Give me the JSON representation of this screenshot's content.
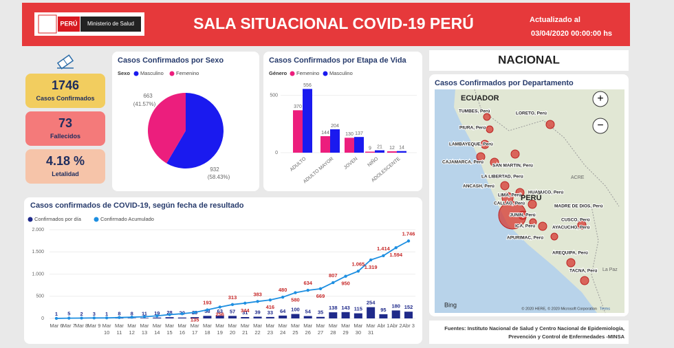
{
  "header": {
    "logo_country": "PERÚ",
    "logo_ministry": "Ministerio de Salud",
    "title": "SALA SITUACIONAL COVID-19 PERÚ",
    "updated_label": "Actualizado al",
    "updated_date": "03/04/2020 00:00:00 hs"
  },
  "kpis": [
    {
      "value": "1746",
      "label": "Casos Confirmados"
    },
    {
      "value": "73",
      "label": "Fallecidos"
    },
    {
      "value": "4.18 %",
      "label": "Letalidad"
    }
  ],
  "chart_data": [
    {
      "type": "pie",
      "title": "Casos Confirmados por Sexo",
      "legend_title": "Sexo",
      "categories": [
        "Masculino",
        "Femenino"
      ],
      "values": [
        932,
        663
      ],
      "percent_labels": [
        "(58.43%)",
        "(41.57%)"
      ],
      "colors": [
        "#1a1aef",
        "#ec1e7d"
      ]
    },
    {
      "type": "bar",
      "title": "Casos Confirmados por Etapa de Vida",
      "legend_title": "Género",
      "categories": [
        "ADULTO",
        "ADULTO MAYOR",
        "JOVEN",
        "NIÑO",
        "ADOLESCENTE"
      ],
      "series": [
        {
          "name": "Femenino",
          "color": "#ec1e7d",
          "values": [
            370,
            144,
            130,
            9,
            12
          ]
        },
        {
          "name": "Masculino",
          "color": "#1a1aef",
          "values": [
            556,
            204,
            137,
            21,
            14
          ]
        }
      ],
      "ylim": [
        0,
        600
      ],
      "yticks": [
        0,
        500
      ]
    },
    {
      "type": "combo",
      "title": "Casos confirmados de COVID-19, según fecha de resultado",
      "categories": [
        "Mar 6",
        "Mar 7",
        "Mar 8",
        "Mar 9",
        "Mar 10",
        "Mar 11",
        "Mar 12",
        "Mar 13",
        "Mar 14",
        "Mar 15",
        "Mar 16",
        "Mar 17",
        "Mar 18",
        "Mar 19",
        "Mar 20",
        "Mar 21",
        "Mar 22",
        "Mar 23",
        "Mar 24",
        "Mar 25",
        "Mar 26",
        "Mar 27",
        "Mar 28",
        "Mar 29",
        "Mar 30",
        "Mar 31",
        "Abr 1",
        "Abr 2",
        "Abr 3"
      ],
      "series": [
        {
          "name": "Confirmados por día",
          "mark": "bar",
          "color": "#1f2a8a",
          "values": [
            1,
            5,
            2,
            3,
            1,
            8,
            8,
            11,
            19,
            28,
            20,
            29,
            58,
            63,
            57,
            31,
            39,
            33,
            64,
            100,
            54,
            35,
            138,
            143,
            115,
            254,
            95,
            180,
            152
          ]
        },
        {
          "name": "Confirmado Acumulado",
          "mark": "line",
          "color": "#1e8fe1",
          "label_color": "#c62828",
          "values": [
            1,
            6,
            8,
            11,
            12,
            20,
            28,
            39,
            58,
            86,
            106,
            135,
            193,
            256,
            313,
            344,
            383,
            416,
            480,
            580,
            634,
            669,
            807,
            950,
            1065,
            1319,
            1414,
            1594,
            1746
          ],
          "value_labels": [
            null,
            null,
            null,
            null,
            null,
            null,
            null,
            null,
            null,
            null,
            null,
            "135",
            "193",
            "256",
            "313",
            "344",
            "383",
            "416",
            "480",
            "580",
            "634",
            "669",
            "807",
            "950",
            "1.065",
            "1.319",
            "1.414",
            "1.594",
            "1.746"
          ]
        }
      ],
      "ylim": [
        0,
        2000
      ],
      "yticks": [
        0,
        500,
        {
          "value": 1000,
          "label": "1.000"
        },
        {
          "value": 1500,
          "label": "1.500"
        },
        {
          "value": 2000,
          "label": "2.000"
        }
      ]
    }
  ],
  "map": {
    "heading": "NACIONAL",
    "title": "Casos Confirmados por Departamento",
    "labels": [
      "TUMBES, Perú",
      "LORETO, Perú",
      "PIURA, Perú",
      "LAMBAYEQUE, Perú",
      "CAJAMARCA, Perú",
      "SAN MARTIN, Perú",
      "LA LIBERTAD, Perú",
      "ANCASH, Perú",
      "HUANUCO, Perú",
      "LIMA, Perú",
      "CALLAO, Perú",
      "MADRE DE DIOS, Perú",
      "JUNIN, Perú",
      "CUSCO, Perú",
      "ICA, Perú",
      "AYACUCHO, Perú",
      "APURIMAC, Perú",
      "AREQUIPA, Perú",
      "TACNA, Perú"
    ],
    "country_labels": [
      "ECUADOR",
      "PERÚ",
      "ACRE",
      "La Paz"
    ],
    "provider": "Bing",
    "copyright": "© 2020 HERE, © 2020 Microsoft Corporation",
    "terms": "Terms"
  },
  "footer": {
    "line1": "Fuentes: Instituto Nacional de Salud y Centro Nacional de Epidemiología,",
    "line2": "Prevención y Control de Enfermedades -MINSA"
  }
}
